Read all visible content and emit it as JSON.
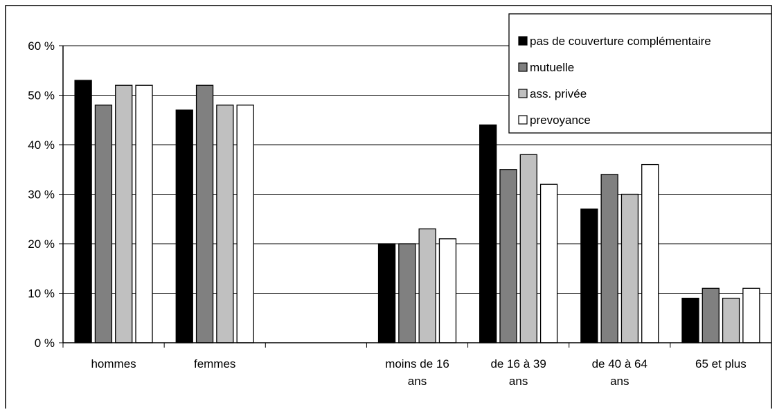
{
  "chart_data": {
    "type": "bar",
    "title": "",
    "xlabel": "",
    "ylabel": "",
    "ylim": [
      0,
      60
    ],
    "yticks": [
      "0 %",
      "10 %",
      "20 %",
      "30 %",
      "40 %",
      "50 %",
      "60 %"
    ],
    "ytick_values": [
      0,
      10,
      20,
      30,
      40,
      50,
      60
    ],
    "grid": true,
    "legend_position": "top-right",
    "categories": [
      [
        "hommes"
      ],
      [
        "femmes"
      ],
      [],
      [
        "moins de 16",
        "ans"
      ],
      [
        "de 16 à 39",
        "ans"
      ],
      [
        "de 40 à 64",
        "ans"
      ],
      [
        "65 et plus"
      ]
    ],
    "series": [
      {
        "name": "pas de couverture complémentaire",
        "color": "#000000",
        "values": [
          53,
          47,
          null,
          20,
          44,
          27,
          9
        ]
      },
      {
        "name": "mutuelle",
        "color": "#808080",
        "values": [
          48,
          52,
          null,
          20,
          35,
          34,
          11
        ]
      },
      {
        "name": "ass. privée",
        "color": "#c0c0c0",
        "values": [
          52,
          48,
          null,
          23,
          38,
          30,
          9
        ]
      },
      {
        "name": "prevoyance",
        "color": "#ffffff",
        "values": [
          52,
          48,
          null,
          21,
          32,
          36,
          11
        ]
      }
    ]
  }
}
